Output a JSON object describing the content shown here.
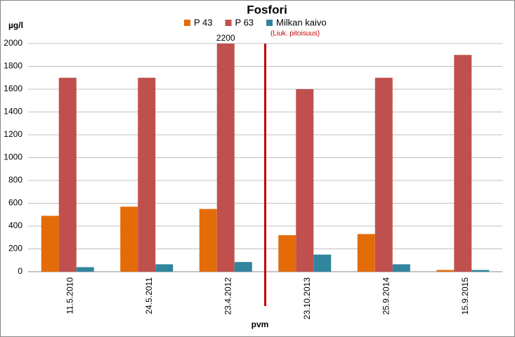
{
  "chart_data": {
    "type": "bar",
    "title": "Fosfori",
    "y_label": "µg/l",
    "x_label": "pvm",
    "annotation": "(Liuk. pitoisuus)",
    "categories": [
      "11.5.2010",
      "24.5.2011",
      "23.4.2012",
      "23.10.2013",
      "25.9.2014",
      "15.9.2015"
    ],
    "series": [
      {
        "name": "P 43",
        "color": "#e36c09",
        "values": [
          490,
          570,
          550,
          320,
          330,
          15
        ]
      },
      {
        "name": "P 63",
        "color": "#c0504d",
        "values": [
          1700,
          1700,
          2200,
          1600,
          1700,
          1900
        ],
        "value_labels": [
          null,
          null,
          "2200",
          null,
          null,
          null
        ]
      },
      {
        "name": "Milkan kaivo",
        "color": "#31859c",
        "values": [
          40,
          65,
          85,
          150,
          65,
          15
        ]
      }
    ],
    "ylim": [
      0,
      2000
    ],
    "yticks": [
      0,
      200,
      400,
      600,
      800,
      1000,
      1200,
      1400,
      1600,
      1800,
      2000
    ],
    "grid": true,
    "legend": "top"
  }
}
